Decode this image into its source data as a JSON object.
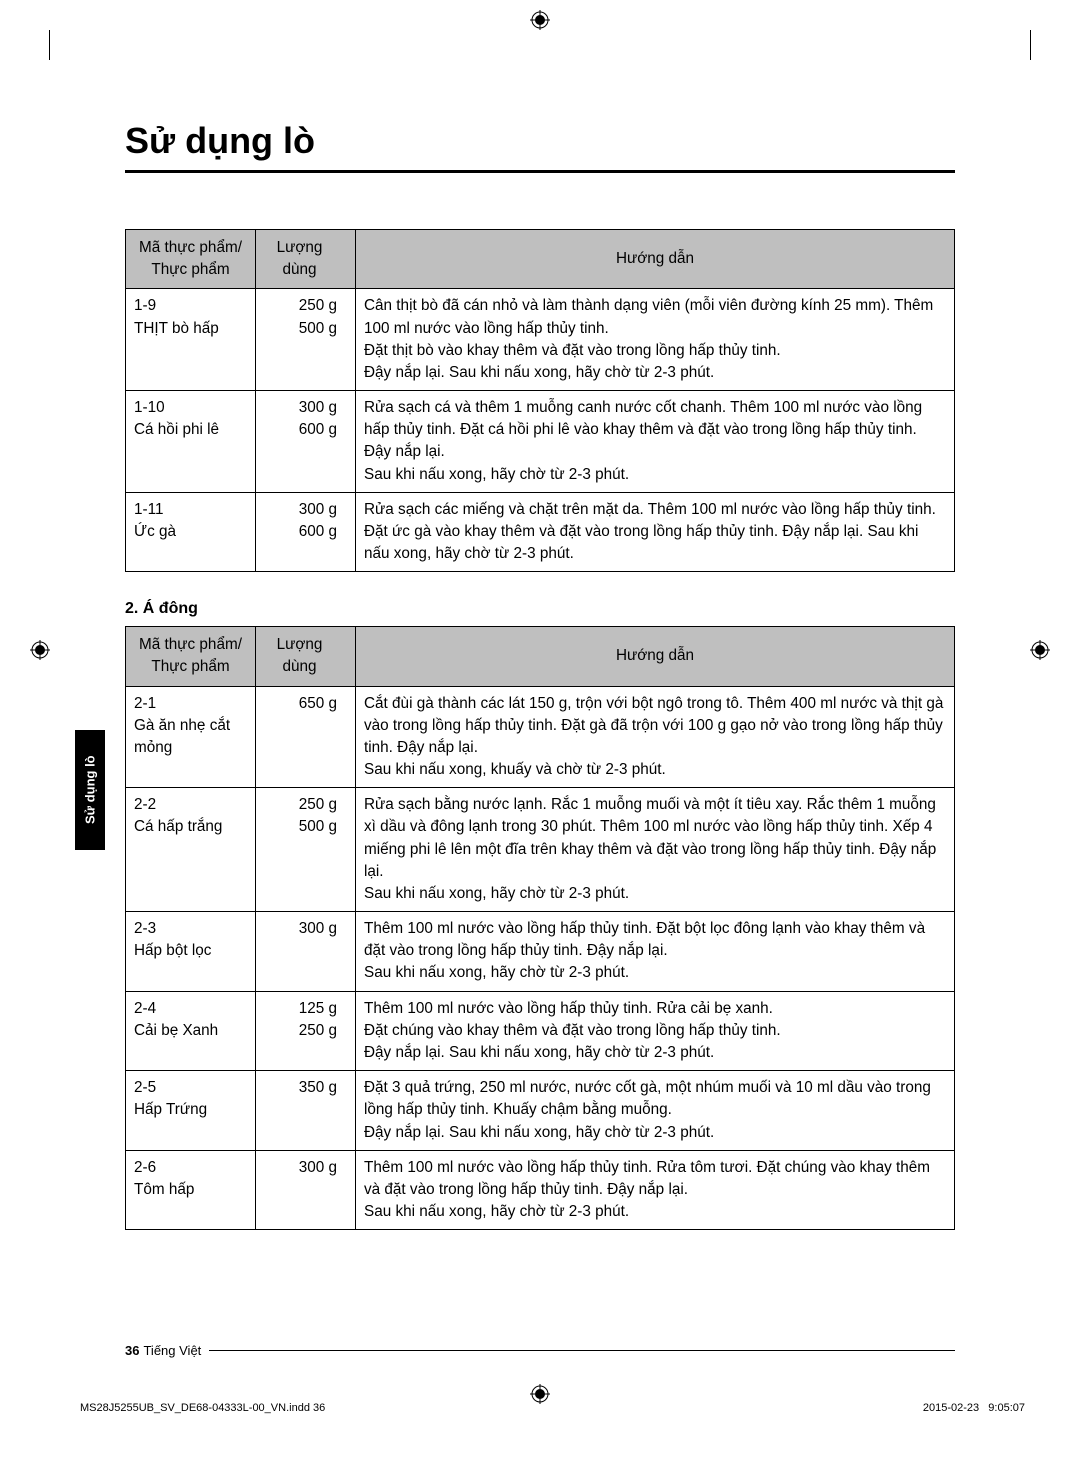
{
  "title": "Sử dụng lò",
  "side_tab": "Sử dụng lò",
  "table1": {
    "headers": [
      "Mã thực phẩm/\nThực phẩm",
      "Lượng dùng",
      "Hướng dẫn"
    ],
    "rows": [
      {
        "code": "1-9\nTHỊT bò hấp",
        "qty": "250 g\n500 g",
        "guide": "Cân thịt bò đã cán nhỏ và làm thành dạng viên (mỗi viên đường kính 25 mm). Thêm 100 ml nước vào lồng hấp thủy tinh.\nĐặt thịt bò vào khay thêm và đặt vào trong lồng hấp thủy tinh.\nĐậy nắp lại. Sau khi nấu xong, hãy chờ từ 2-3 phút."
      },
      {
        "code": "1-10\nCá hồi phi lê",
        "qty": "300 g\n600 g",
        "guide": "Rửa sạch cá và thêm 1 muỗng canh nước cốt chanh. Thêm 100 ml nước vào lồng hấp thủy tinh. Đặt cá hồi phi lê vào khay thêm và đặt vào trong lồng hấp thủy tinh. Đậy nắp lại.\nSau khi nấu xong, hãy chờ từ 2-3 phút."
      },
      {
        "code": "1-11\nỨc gà",
        "qty": "300 g\n600 g",
        "guide": "Rửa sạch các miếng và chặt trên mặt da. Thêm 100 ml nước vào lồng hấp thủy tinh. Đặt ức gà vào khay thêm và đặt vào trong lồng hấp thủy tinh. Đậy nắp lại. Sau khi nấu xong, hãy chờ từ 2-3 phút."
      }
    ]
  },
  "subheading_2": "2. Á đông",
  "table2": {
    "headers": [
      "Mã thực phẩm/\nThực phẩm",
      "Lượng dùng",
      "Hướng dẫn"
    ],
    "rows": [
      {
        "code": "2-1\nGà ăn nhẹ cắt mỏng",
        "qty": "650 g",
        "guide": "Cắt đùi gà thành các lát 150 g, trộn với bột ngô trong tô. Thêm 400 ml nước và thịt gà vào trong lồng hấp thủy tinh. Đặt gà đã trộn với 100 g gạo nở vào trong lồng hấp thủy tinh. Đậy nắp lại.\nSau khi nấu xong, khuấy và chờ từ 2-3 phút."
      },
      {
        "code": "2-2\nCá hấp trắng",
        "qty": "250 g\n500 g",
        "guide": "Rửa sạch bằng nước lạnh. Rắc 1 muỗng muối và một ít tiêu xay. Rắc thêm 1 muỗng xì dầu và đông lạnh trong 30 phút. Thêm 100 ml nước vào lồng hấp thủy tinh. Xếp 4 miếng phi lê lên một đĩa trên khay thêm và đặt vào trong lồng hấp thủy tinh. Đậy nắp lại.\nSau khi nấu xong, hãy chờ từ 2-3 phút."
      },
      {
        "code": "2-3\nHấp bột lọc",
        "qty": "300 g",
        "guide": "Thêm 100 ml nước vào lồng hấp thủy tinh. Đặt bột lọc đông lạnh vào khay thêm và đặt vào trong lồng hấp thủy tinh. Đậy nắp lại.\nSau khi nấu xong, hãy chờ từ 2-3 phút."
      },
      {
        "code": "2-4\nCải bẹ Xanh",
        "qty": "125 g\n250 g",
        "guide": "Thêm 100 ml nước vào lồng hấp thủy tinh. Rửa cải bẹ xanh.\nĐặt chúng vào khay thêm và đặt vào trong lồng hấp thủy tinh.\nĐậy nắp lại. Sau khi nấu xong, hãy chờ từ 2-3 phút."
      },
      {
        "code": "2-5\nHấp Trứng",
        "qty": "350 g",
        "guide": "Đặt 3 quả trứng, 250 ml nước, nước cốt gà, một nhúm muối và 10 ml dầu vào trong lồng hấp thủy tinh. Khuấy chậm bằng muỗng.\nĐậy nắp lại. Sau khi nấu xong, hãy chờ từ 2-3 phút."
      },
      {
        "code": "2-6\nTôm hấp",
        "qty": "300 g",
        "guide": "Thêm 100 ml nước vào lồng hấp thủy tinh. Rửa tôm tươi. Đặt chúng vào khay thêm và đặt vào trong lồng hấp thủy tinh. Đậy nắp lại.\nSau khi nấu xong, hãy chờ từ 2-3 phút."
      }
    ]
  },
  "footer": {
    "page": "36",
    "lang": "Tiếng Việt"
  },
  "print_footer": {
    "file": "MS28J5255UB_SV_DE68-04333L-00_VN.indd   36",
    "date": "2015-02-23",
    "time": "9:05:07"
  }
}
